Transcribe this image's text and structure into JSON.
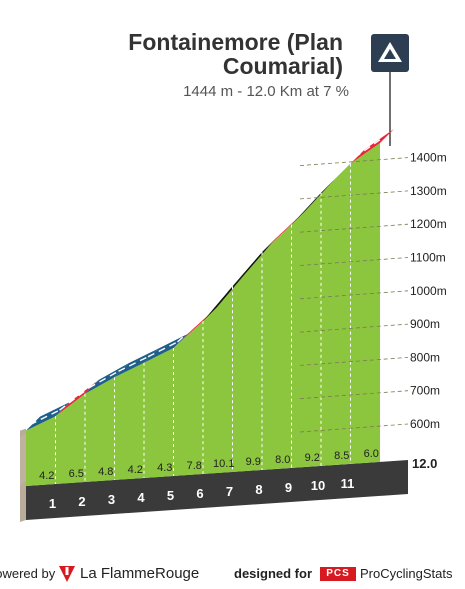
{
  "header": {
    "title_line1": "Fontainemore (Plan",
    "title_line2": "Coumarial)",
    "subtitle": "1444 m - 12.0 Km at 7 %",
    "badge_icon": "mountain-summit-icon"
  },
  "chart_data": {
    "type": "area",
    "title": "Fontainemore (Plan Coumarial)",
    "subtitle": "1444 m - 12.0 Km at 7 %",
    "x_unit": "km",
    "y_unit": "m",
    "ylim": [
      580,
      1444
    ],
    "xlim": [
      0,
      12
    ],
    "y_ticks": [
      600,
      700,
      800,
      900,
      1000,
      1100,
      1200,
      1300,
      1400
    ],
    "y_tick_labels": [
      "600m",
      "700m",
      "800m",
      "900m",
      "1000m",
      "1100m",
      "1200m",
      "1300m",
      "1400m"
    ],
    "km_labels": [
      "1",
      "2",
      "3",
      "4",
      "5",
      "6",
      "7",
      "8",
      "9",
      "10",
      "11"
    ],
    "end_km_label": "12.0",
    "segment_gradients": [
      4.2,
      6.5,
      4.8,
      4.2,
      4.3,
      7.8,
      10.1,
      9.9,
      8.0,
      9.2,
      8.5,
      6.0
    ],
    "segment_gradient_labels": [
      "4.2",
      "6.5",
      "4.8",
      "4.2",
      "4.3",
      "7.8",
      "10.1",
      "9.9",
      "8.0",
      "9.2",
      "8.5",
      "6.0"
    ],
    "gradient_color_scale": [
      {
        "max": 5,
        "color": "#1f5f8b"
      },
      {
        "max": 9,
        "color": "#e8273a"
      },
      {
        "max": 99,
        "color": "#111111"
      }
    ],
    "fill_color": "#8cc63f",
    "grid": true
  },
  "footer": {
    "powered_by": "powered by",
    "brand_la": "La Flamme",
    "brand_rouge": "Rouge",
    "designed_for": "designed for",
    "pcs_badge": "PCS",
    "pcs_name": "ProCyclingStats",
    "brand_icon": "flamme-rouge-flag-icon"
  }
}
